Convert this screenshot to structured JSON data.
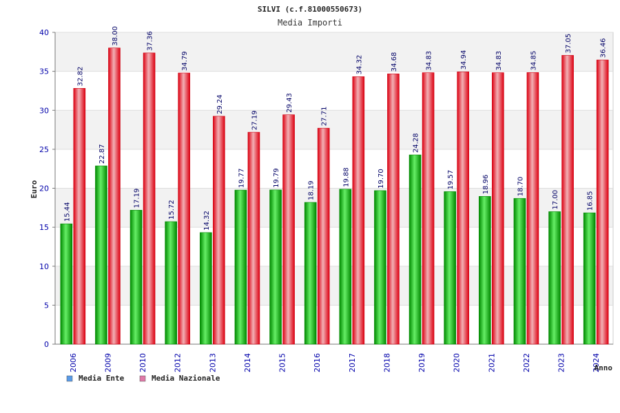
{
  "chart_data": {
    "type": "bar",
    "title": "SILVI (c.f.81000550673)",
    "subtitle": "Media Importi",
    "xlabel": "Anno",
    "ylabel": "Euro",
    "ylim": [
      0,
      40
    ],
    "yticks": [
      0,
      5,
      10,
      15,
      20,
      25,
      30,
      35,
      40
    ],
    "categories": [
      "2006",
      "2009",
      "2010",
      "2012",
      "2013",
      "2014",
      "2015",
      "2016",
      "2017",
      "2018",
      "2019",
      "2020",
      "2021",
      "2022",
      "2023",
      "2024"
    ],
    "series": [
      {
        "name": "Media Ente",
        "color": "#00aa00",
        "labels": [
          "15.44",
          "22.87",
          "17.19",
          "15.72",
          "14.32",
          "19.77",
          "19.79",
          "18.19",
          "19.88",
          "19.70",
          "24.28",
          "19.57",
          "18.96",
          "18.70",
          "17.00",
          "16.85"
        ],
        "values": [
          15.44,
          22.87,
          17.19,
          15.72,
          14.32,
          19.77,
          19.79,
          18.19,
          19.88,
          19.7,
          24.28,
          19.57,
          18.96,
          18.7,
          17.0,
          16.85
        ]
      },
      {
        "name": "Media Nazionale",
        "color": "#ee1122",
        "labels": [
          "32.82",
          "38.00",
          "37.36",
          "34.79",
          "29.24",
          "27.19",
          "29.43",
          "27.71",
          "34.32",
          "34.68",
          "34.83",
          "34.94",
          "34.83",
          "34.85",
          "37.05",
          "36.46"
        ],
        "values": [
          32.82,
          38.0,
          37.36,
          34.79,
          29.24,
          27.19,
          29.43,
          27.71,
          34.32,
          34.68,
          34.83,
          34.94,
          34.83,
          34.85,
          37.05,
          36.46
        ]
      }
    ],
    "legend": [
      {
        "label": "Media Ente",
        "color": "#5a9be8"
      },
      {
        "label": "Media Nazionale",
        "color": "#e07aa8"
      }
    ]
  }
}
